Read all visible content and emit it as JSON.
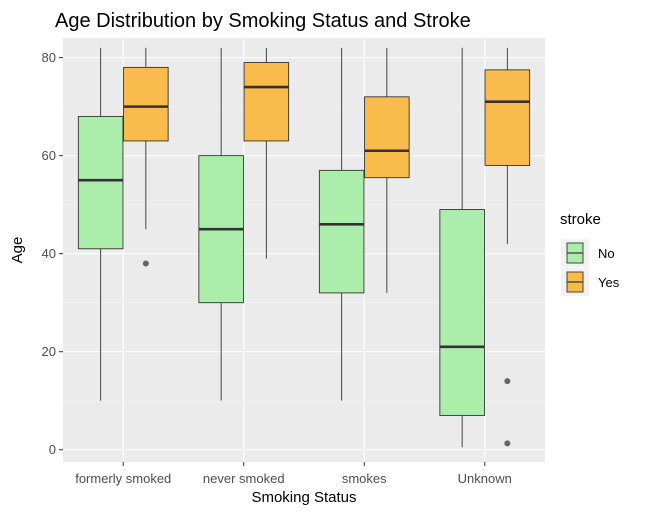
{
  "chart_data": {
    "type": "boxplot",
    "title": "Age Distribution by Smoking Status and Stroke",
    "xlabel": "Smoking Status",
    "ylabel": "Age",
    "categories": [
      "formerly smoked",
      "never smoked",
      "smokes",
      "Unknown"
    ],
    "ylim": [
      -2.5,
      84
    ],
    "yticks": [
      0,
      20,
      40,
      60,
      80
    ],
    "grid": true,
    "legend": {
      "title": "stroke",
      "position": "right"
    },
    "series": [
      {
        "name": "No",
        "color": "#abedab",
        "boxes": [
          {
            "whisker_low": 10,
            "q1": 41,
            "median": 55,
            "q3": 68,
            "whisker_high": 82,
            "outliers": []
          },
          {
            "whisker_low": 10,
            "q1": 30,
            "median": 45,
            "q3": 60,
            "whisker_high": 82,
            "outliers": []
          },
          {
            "whisker_low": 10,
            "q1": 32,
            "median": 46,
            "q3": 57,
            "whisker_high": 82,
            "outliers": []
          },
          {
            "whisker_low": 0.5,
            "q1": 7,
            "median": 21,
            "q3": 49,
            "whisker_high": 82,
            "outliers": []
          }
        ]
      },
      {
        "name": "Yes",
        "color": "#f9bb4c",
        "boxes": [
          {
            "whisker_low": 45,
            "q1": 63,
            "median": 70,
            "q3": 78,
            "whisker_high": 82,
            "outliers": [
              38
            ]
          },
          {
            "whisker_low": 39,
            "q1": 63,
            "median": 74,
            "q3": 79,
            "whisker_high": 82,
            "outliers": []
          },
          {
            "whisker_low": 32,
            "q1": 55.5,
            "median": 61,
            "q3": 72,
            "whisker_high": 82,
            "outliers": []
          },
          {
            "whisker_low": 42,
            "q1": 58,
            "median": 71,
            "q3": 77.5,
            "whisker_high": 82,
            "outliers": [
              14,
              1.3
            ]
          }
        ]
      }
    ]
  }
}
